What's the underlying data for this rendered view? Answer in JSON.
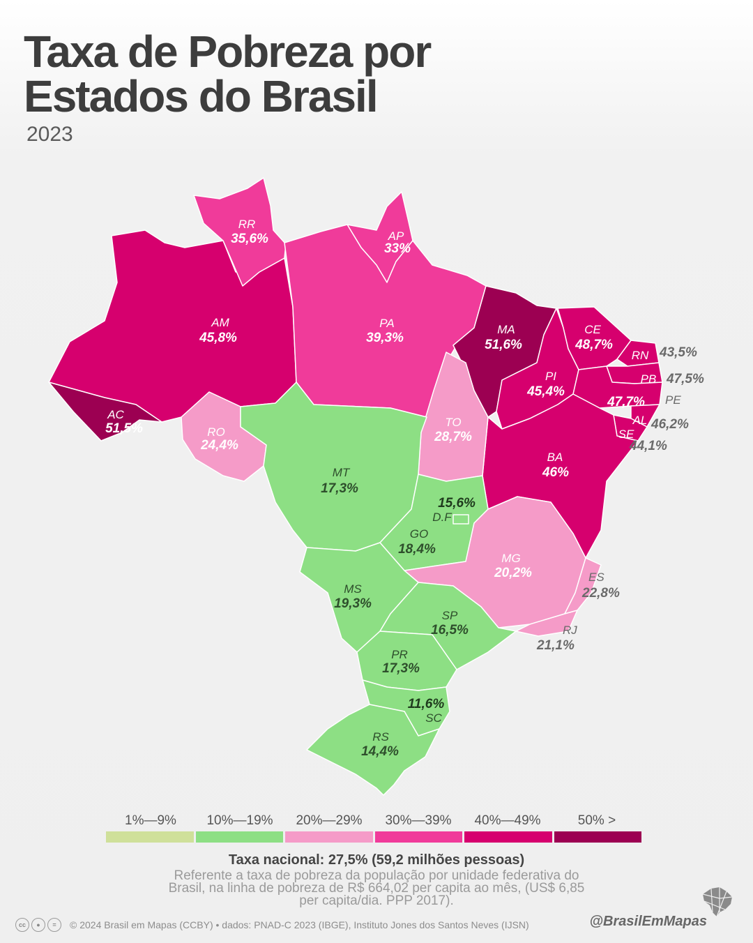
{
  "title": {
    "line1": "Taxa de Pobreza por",
    "line2": "Estados do Brasil"
  },
  "year": "2023",
  "colors": {
    "bin1": "#cfe09a",
    "bin2": "#8ddf84",
    "bin3": "#f59bc8",
    "bin4": "#f03b9a",
    "bin5": "#d6006e",
    "bin6": "#9c0052"
  },
  "states": {
    "RR": {
      "code": "RR",
      "value": "35,6%"
    },
    "AP": {
      "code": "AP",
      "value": "33%"
    },
    "AM": {
      "code": "AM",
      "value": "45,8%"
    },
    "PA": {
      "code": "PA",
      "value": "39,3%"
    },
    "MA": {
      "code": "MA",
      "value": "51,6%"
    },
    "CE": {
      "code": "CE",
      "value": "48,7%"
    },
    "RN": {
      "code": "RN",
      "value": "43,5%"
    },
    "PB": {
      "code": "PB",
      "value": "47,5%"
    },
    "PE": {
      "code": "PE",
      "value": "47,7%"
    },
    "AL": {
      "code": "AL",
      "value": "46,2%"
    },
    "SE": {
      "code": "SE",
      "value": "44,1%"
    },
    "PI": {
      "code": "PI",
      "value": "45,4%"
    },
    "AC": {
      "code": "AC",
      "value": "51,5%"
    },
    "RO": {
      "code": "RO",
      "value": "24,4%"
    },
    "TO": {
      "code": "TO",
      "value": "28,7%"
    },
    "BA": {
      "code": "BA",
      "value": "46%"
    },
    "MT": {
      "code": "MT",
      "value": "17,3%"
    },
    "DF": {
      "code": "D.F",
      "value": "15,6%"
    },
    "GO": {
      "code": "GO",
      "value": "18,4%"
    },
    "MG": {
      "code": "MG",
      "value": "20,2%"
    },
    "ES": {
      "code": "ES",
      "value": "22,8%"
    },
    "MS": {
      "code": "MS",
      "value": "19,3%"
    },
    "SP": {
      "code": "SP",
      "value": "16,5%"
    },
    "RJ": {
      "code": "RJ",
      "value": "21,1%"
    },
    "PR": {
      "code": "PR",
      "value": "17,3%"
    },
    "SC": {
      "code": "SC",
      "value": "11,6%"
    },
    "RS": {
      "code": "RS",
      "value": "14,4%"
    }
  },
  "legend": [
    {
      "label": "1%—9%",
      "color": "#cfe09a"
    },
    {
      "label": "10%—19%",
      "color": "#8ddf84"
    },
    {
      "label": "20%—29%",
      "color": "#f59bc8"
    },
    {
      "label": "30%—39%",
      "color": "#f03b9a"
    },
    {
      "label": "40%—49%",
      "color": "#d6006e"
    },
    {
      "label": "50% >",
      "color": "#9c0052"
    }
  ],
  "national": "Taxa nacional: 27,5% (59,2 milhões pessoas)",
  "note": "Referente a taxa de pobreza da população por unidade federativa do Brasil, na linha de pobreza de R$ 664,02 per capita ao mês, (US$ 6,85 per capita/dia. PPP 2017).",
  "footer": "© 2024 Brasil em Mapas (CCBY) • dados: PNAD-C 2023 (IBGE), Instituto Jones dos Santos Neves (IJSN)",
  "license_icons": [
    "cc-icon",
    "by-icon",
    "nd-icon"
  ],
  "handle": "@BrasilEmMapas"
}
